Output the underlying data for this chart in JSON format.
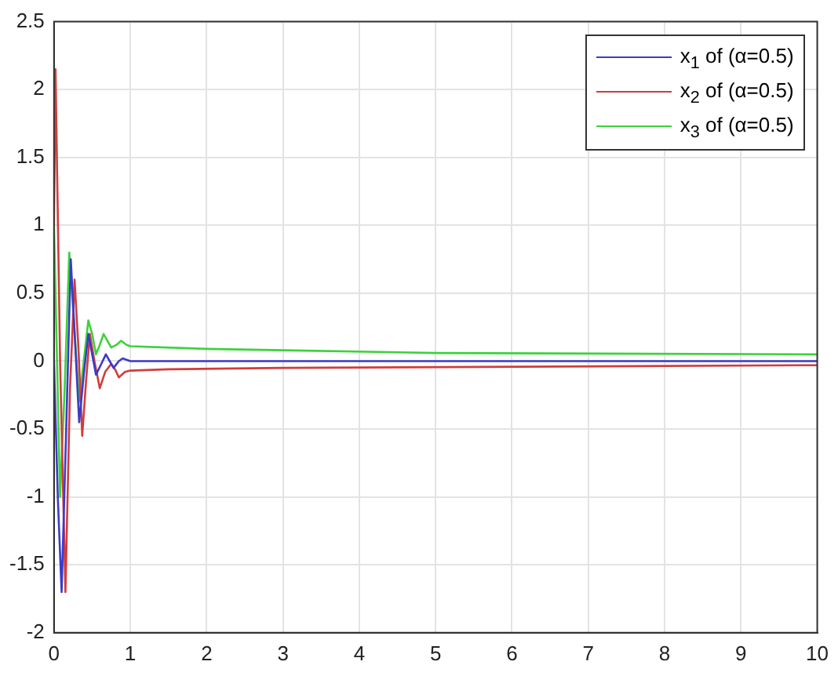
{
  "chart_data": {
    "type": "line",
    "xlim": [
      0,
      10
    ],
    "ylim": [
      -2,
      2.5
    ],
    "xticks": [
      0,
      1,
      2,
      3,
      4,
      5,
      6,
      7,
      8,
      9,
      10
    ],
    "yticks": [
      -2,
      -1.5,
      -1,
      -0.5,
      0,
      0.5,
      1,
      1.5,
      2,
      2.5
    ],
    "grid": true,
    "legend": "top right",
    "marker": "none",
    "line_style": "solid",
    "series": [
      {
        "name": "x$_{1}$ of (α=0.5)",
        "color": "#3b3bc8",
        "x": [
          0,
          0.05,
          0.1,
          0.16,
          0.22,
          0.28,
          0.33,
          0.39,
          0.45,
          0.5,
          0.55,
          0.62,
          0.68,
          0.73,
          0.78,
          0.85,
          0.9,
          1,
          1.5,
          3,
          10
        ],
        "values": [
          0,
          -1,
          -1.7,
          -0.5,
          0.75,
          0.1,
          -0.45,
          -0.1,
          0.2,
          0.05,
          -0.1,
          -0.02,
          0.05,
          0,
          -0.05,
          0,
          0.02,
          0,
          0,
          0,
          0
        ]
      },
      {
        "name": "x$_{2}$ of (α=0.5)",
        "color": "#d23c3c",
        "x": [
          0,
          0.02,
          0.08,
          0.15,
          0.21,
          0.27,
          0.32,
          0.37,
          0.42,
          0.47,
          0.53,
          0.6,
          0.67,
          0.75,
          0.8,
          0.85,
          0.93,
          1,
          1.5,
          3,
          10
        ],
        "values": [
          1,
          2.15,
          0,
          -1.7,
          -0.2,
          0.6,
          0.1,
          -0.55,
          -0.15,
          0.2,
          0,
          -0.2,
          -0.08,
          -0.02,
          -0.06,
          -0.12,
          -0.08,
          -0.07,
          -0.06,
          -0.05,
          -0.03
        ]
      },
      {
        "name": "x$_{3}$ of (α=0.5)",
        "color": "#3cd23c",
        "x": [
          0,
          0.04,
          0.08,
          0.14,
          0.2,
          0.26,
          0.33,
          0.39,
          0.45,
          0.5,
          0.55,
          0.6,
          0.65,
          0.7,
          0.75,
          0.82,
          0.88,
          0.95,
          1,
          2,
          3,
          5,
          10
        ],
        "values": [
          1,
          0,
          -1,
          -0.2,
          0.8,
          0.3,
          -0.3,
          0,
          0.3,
          0.2,
          0.05,
          0.12,
          0.2,
          0.15,
          0.1,
          0.12,
          0.15,
          0.12,
          0.11,
          0.09,
          0.08,
          0.06,
          0.05
        ]
      }
    ]
  }
}
